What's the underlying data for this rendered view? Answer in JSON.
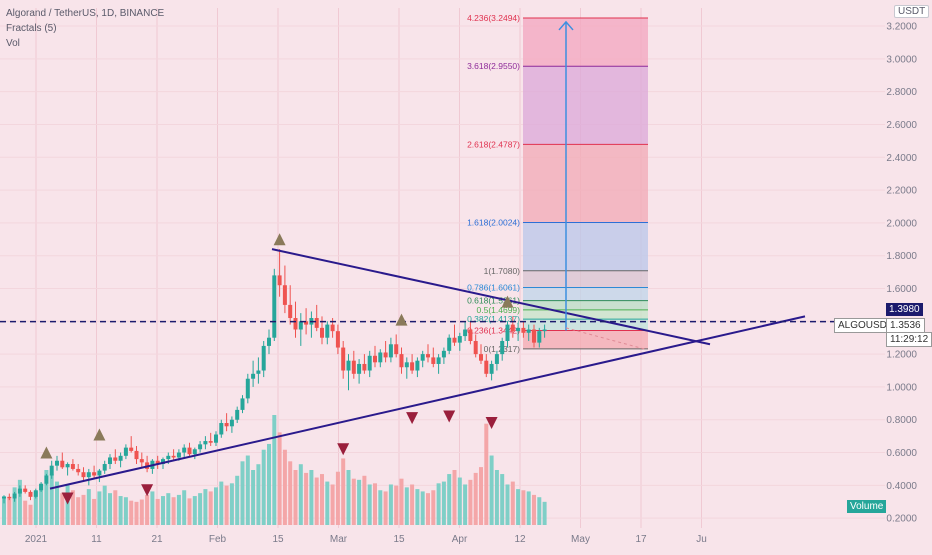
{
  "header": {
    "symbol_line": "Algorand / TetherUS, 1D, BINANCE",
    "indicator_1": "Fractals (5)",
    "indicator_2": "Vol"
  },
  "currency_badge": "USDT",
  "price_labels": {
    "dashed_level": "1.3980",
    "symbol": "ALGOUSDT",
    "last_price": "1.3536",
    "countdown": "11:29:12"
  },
  "volume_badge": "Volume",
  "chart_data": {
    "type": "candlestick",
    "y_axis": {
      "ticks": [
        "3.2000",
        "3.0000",
        "2.8000",
        "2.6000",
        "2.4000",
        "2.2000",
        "2.0000",
        "1.8000",
        "1.6000",
        "1.4000",
        "1.2000",
        "1.0000",
        "0.8000",
        "0.6000",
        "0.4000",
        "0.2000"
      ],
      "range": [
        0.14,
        3.31
      ]
    },
    "x_axis": {
      "labels": [
        "2021",
        "11",
        "21",
        "Feb",
        "15",
        "Mar",
        "15",
        "Apr",
        "12",
        "May",
        "17",
        "Ju"
      ]
    },
    "fib_levels": [
      {
        "label": "4.236(3.2494)",
        "value": 3.2494,
        "color": "#e0314f"
      },
      {
        "label": "3.618(2.9550)",
        "value": 2.955,
        "color": "#8e2c9a"
      },
      {
        "label": "2.618(2.4787)",
        "value": 2.4787,
        "color": "#e0314f"
      },
      {
        "label": "1.618(2.0024)",
        "value": 2.0024,
        "color": "#2c6fd6"
      },
      {
        "label": "1(1.7080)",
        "value": 1.708,
        "color": "#666666"
      },
      {
        "label": "0.786(1.6061)",
        "value": 1.6061,
        "color": "#2c8ad6"
      },
      {
        "label": "0.618(1.5261)",
        "value": 1.5261,
        "color": "#2e8b57"
      },
      {
        "label": "0.5(1.4699)",
        "value": 1.4699,
        "color": "#4caf50"
      },
      {
        "label": "0.382(1.4137)",
        "value": 1.4137,
        "color": "#26a69a"
      },
      {
        "label": "0.236(1.3442)",
        "value": 1.3442,
        "color": "#e0314f"
      },
      {
        "label": "0(1.2317)",
        "value": 1.2317,
        "color": "#666666"
      }
    ],
    "candles": [
      [
        0.32,
        0.34,
        0.29,
        0.33
      ],
      [
        0.33,
        0.35,
        0.31,
        0.32
      ],
      [
        0.32,
        0.36,
        0.3,
        0.35
      ],
      [
        0.35,
        0.4,
        0.33,
        0.38
      ],
      [
        0.38,
        0.4,
        0.35,
        0.36
      ],
      [
        0.36,
        0.37,
        0.31,
        0.33
      ],
      [
        0.33,
        0.38,
        0.32,
        0.37
      ],
      [
        0.37,
        0.42,
        0.36,
        0.41
      ],
      [
        0.41,
        0.47,
        0.4,
        0.46
      ],
      [
        0.46,
        0.55,
        0.44,
        0.52
      ],
      [
        0.52,
        0.58,
        0.49,
        0.55
      ],
      [
        0.55,
        0.6,
        0.5,
        0.51
      ],
      [
        0.51,
        0.54,
        0.46,
        0.53
      ],
      [
        0.53,
        0.56,
        0.49,
        0.5
      ],
      [
        0.5,
        0.53,
        0.46,
        0.48
      ],
      [
        0.48,
        0.51,
        0.43,
        0.45
      ],
      [
        0.45,
        0.5,
        0.4,
        0.48
      ],
      [
        0.48,
        0.52,
        0.44,
        0.46
      ],
      [
        0.46,
        0.5,
        0.42,
        0.49
      ],
      [
        0.49,
        0.55,
        0.47,
        0.53
      ],
      [
        0.53,
        0.59,
        0.5,
        0.57
      ],
      [
        0.57,
        0.62,
        0.53,
        0.55
      ],
      [
        0.55,
        0.6,
        0.51,
        0.58
      ],
      [
        0.58,
        0.65,
        0.56,
        0.63
      ],
      [
        0.63,
        0.7,
        0.6,
        0.61
      ],
      [
        0.61,
        0.64,
        0.53,
        0.56
      ],
      [
        0.56,
        0.6,
        0.51,
        0.54
      ],
      [
        0.54,
        0.58,
        0.48,
        0.5
      ],
      [
        0.5,
        0.56,
        0.47,
        0.55
      ],
      [
        0.55,
        0.58,
        0.5,
        0.53
      ],
      [
        0.53,
        0.57,
        0.5,
        0.56
      ],
      [
        0.56,
        0.6,
        0.53,
        0.58
      ],
      [
        0.58,
        0.62,
        0.55,
        0.57
      ],
      [
        0.57,
        0.62,
        0.55,
        0.6
      ],
      [
        0.6,
        0.65,
        0.57,
        0.63
      ],
      [
        0.63,
        0.66,
        0.58,
        0.59
      ],
      [
        0.59,
        0.63,
        0.56,
        0.62
      ],
      [
        0.62,
        0.67,
        0.6,
        0.65
      ],
      [
        0.65,
        0.7,
        0.62,
        0.67
      ],
      [
        0.67,
        0.72,
        0.64,
        0.66
      ],
      [
        0.66,
        0.73,
        0.64,
        0.71
      ],
      [
        0.71,
        0.8,
        0.69,
        0.78
      ],
      [
        0.78,
        0.84,
        0.73,
        0.76
      ],
      [
        0.76,
        0.82,
        0.72,
        0.8
      ],
      [
        0.8,
        0.88,
        0.78,
        0.86
      ],
      [
        0.86,
        0.95,
        0.84,
        0.93
      ],
      [
        0.93,
        1.08,
        0.9,
        1.05
      ],
      [
        1.05,
        1.16,
        1.0,
        1.08
      ],
      [
        1.08,
        1.18,
        1.02,
        1.1
      ],
      [
        1.1,
        1.28,
        1.06,
        1.25
      ],
      [
        1.25,
        1.35,
        1.2,
        1.3
      ],
      [
        1.3,
        1.72,
        1.28,
        1.68
      ],
      [
        1.68,
        1.84,
        1.55,
        1.62
      ],
      [
        1.62,
        1.74,
        1.45,
        1.5
      ],
      [
        1.5,
        1.62,
        1.38,
        1.42
      ],
      [
        1.42,
        1.52,
        1.3,
        1.35
      ],
      [
        1.35,
        1.45,
        1.25,
        1.4
      ],
      [
        1.4,
        1.48,
        1.32,
        1.38
      ],
      [
        1.38,
        1.46,
        1.3,
        1.42
      ],
      [
        1.42,
        1.5,
        1.34,
        1.36
      ],
      [
        1.36,
        1.43,
        1.26,
        1.3
      ],
      [
        1.3,
        1.4,
        1.26,
        1.38
      ],
      [
        1.38,
        1.42,
        1.3,
        1.34
      ],
      [
        1.34,
        1.38,
        1.2,
        1.24
      ],
      [
        1.24,
        1.28,
        1.05,
        1.1
      ],
      [
        1.1,
        1.2,
        0.98,
        1.16
      ],
      [
        1.16,
        1.22,
        1.05,
        1.08
      ],
      [
        1.08,
        1.17,
        1.02,
        1.14
      ],
      [
        1.14,
        1.2,
        1.08,
        1.1
      ],
      [
        1.1,
        1.22,
        1.06,
        1.19
      ],
      [
        1.19,
        1.25,
        1.12,
        1.15
      ],
      [
        1.15,
        1.23,
        1.12,
        1.21
      ],
      [
        1.21,
        1.28,
        1.15,
        1.18
      ],
      [
        1.18,
        1.3,
        1.15,
        1.26
      ],
      [
        1.26,
        1.32,
        1.18,
        1.2
      ],
      [
        1.2,
        1.24,
        1.08,
        1.12
      ],
      [
        1.12,
        1.18,
        1.05,
        1.15
      ],
      [
        1.15,
        1.2,
        1.08,
        1.1
      ],
      [
        1.1,
        1.18,
        1.06,
        1.16
      ],
      [
        1.16,
        1.22,
        1.12,
        1.2
      ],
      [
        1.2,
        1.26,
        1.15,
        1.18
      ],
      [
        1.18,
        1.24,
        1.12,
        1.14
      ],
      [
        1.14,
        1.2,
        1.08,
        1.18
      ],
      [
        1.18,
        1.24,
        1.14,
        1.22
      ],
      [
        1.22,
        1.32,
        1.2,
        1.3
      ],
      [
        1.3,
        1.38,
        1.25,
        1.27
      ],
      [
        1.27,
        1.33,
        1.22,
        1.31
      ],
      [
        1.31,
        1.4,
        1.28,
        1.35
      ],
      [
        1.35,
        1.4,
        1.26,
        1.28
      ],
      [
        1.28,
        1.32,
        1.18,
        1.2
      ],
      [
        1.2,
        1.26,
        1.14,
        1.16
      ],
      [
        1.16,
        1.2,
        1.06,
        1.08
      ],
      [
        1.08,
        1.16,
        1.04,
        1.14
      ],
      [
        1.14,
        1.22,
        1.1,
        1.2
      ],
      [
        1.2,
        1.3,
        1.16,
        1.28
      ],
      [
        1.28,
        1.4,
        1.24,
        1.38
      ],
      [
        1.38,
        1.43,
        1.3,
        1.34
      ],
      [
        1.34,
        1.39,
        1.28,
        1.36
      ],
      [
        1.36,
        1.4,
        1.3,
        1.33
      ],
      [
        1.33,
        1.38,
        1.28,
        1.35
      ],
      [
        1.35,
        1.38,
        1.24,
        1.27
      ],
      [
        1.27,
        1.36,
        1.24,
        1.34
      ],
      [
        1.34,
        1.38,
        1.3,
        1.35
      ]
    ],
    "volumes": [
      50,
      45,
      65,
      78,
      42,
      35,
      58,
      70,
      95,
      88,
      75,
      55,
      70,
      60,
      48,
      52,
      62,
      45,
      58,
      68,
      55,
      60,
      50,
      48,
      42,
      40,
      44,
      52,
      58,
      45,
      50,
      55,
      48,
      52,
      60,
      46,
      50,
      55,
      62,
      58,
      65,
      75,
      68,
      72,
      85,
      110,
      120,
      95,
      105,
      130,
      140,
      190,
      160,
      130,
      110,
      95,
      105,
      90,
      95,
      82,
      88,
      75,
      70,
      92,
      115,
      95,
      80,
      78,
      85,
      70,
      72,
      60,
      58,
      70,
      68,
      80,
      65,
      70,
      62,
      58,
      55,
      60,
      72,
      75,
      88,
      95,
      82,
      70,
      78,
      90,
      100,
      175,
      120,
      95,
      88,
      70,
      75,
      62,
      60,
      58,
      52,
      48,
      40
    ],
    "volume_colors": "up=#26a69a down=#ef5350",
    "fractals_up": [
      {
        "index": 8,
        "value": 0.6
      },
      {
        "index": 18,
        "value": 0.71
      },
      {
        "index": 52,
        "value": 1.9
      },
      {
        "index": 75,
        "value": 1.41
      },
      {
        "index": 95,
        "value": 1.52
      }
    ],
    "fractals_down": [
      {
        "index": 12,
        "value": 0.32
      },
      {
        "index": 27,
        "value": 0.37
      },
      {
        "index": 64,
        "value": 0.62
      },
      {
        "index": 77,
        "value": 0.81
      },
      {
        "index": 84,
        "value": 0.82
      },
      {
        "index": 92,
        "value": 0.78
      }
    ],
    "trendlines": [
      {
        "from": [
          0.38,
          "start"
        ],
        "to": [
          1.43,
          "apex"
        ]
      },
      {
        "from": [
          1.84,
          "peak"
        ],
        "to": [
          1.26,
          "apex"
        ]
      }
    ],
    "projection_arrow": {
      "from": 1.3442,
      "to": 3.2494
    }
  }
}
